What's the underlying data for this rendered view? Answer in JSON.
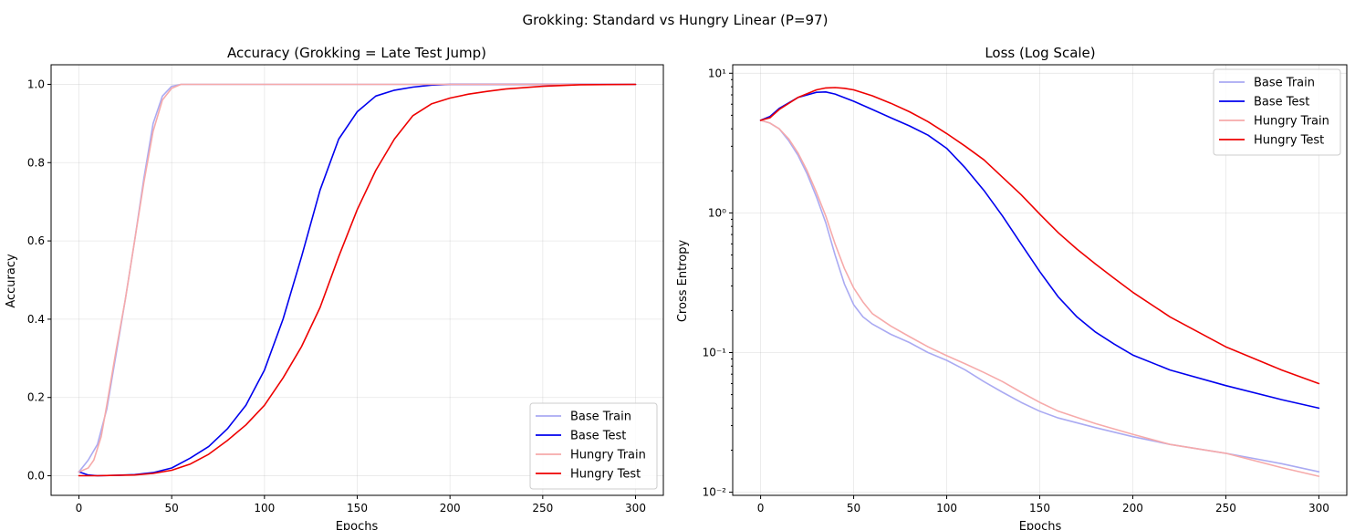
{
  "figure": {
    "suptitle": "Grokking: Standard vs Hungry Linear (P=97)"
  },
  "chart_data": [
    {
      "type": "line",
      "title": "Accuracy (Grokking = Late Test Jump)",
      "xlabel": "Epochs",
      "ylabel": "Accuracy",
      "xlim": [
        -15,
        315
      ],
      "ylim": [
        -0.05,
        1.05
      ],
      "xticks": [
        0,
        50,
        100,
        150,
        200,
        250,
        300
      ],
      "yticks": [
        0.0,
        0.2,
        0.4,
        0.6,
        0.8,
        1.0
      ],
      "ytick_labels": [
        "0.0",
        "0.2",
        "0.4",
        "0.6",
        "0.8",
        "1.0"
      ],
      "grid": true,
      "legend_position": "lower-right",
      "series": [
        {
          "name": "Base Train",
          "color": "#aaaaf2",
          "x": [
            0,
            5,
            10,
            15,
            20,
            25,
            30,
            35,
            40,
            45,
            50,
            55,
            60,
            80,
            100,
            150,
            200,
            250,
            300
          ],
          "y": [
            0.01,
            0.04,
            0.08,
            0.17,
            0.31,
            0.45,
            0.6,
            0.76,
            0.9,
            0.97,
            0.995,
            1.0,
            1.0,
            1.0,
            1.0,
            1.0,
            1.0,
            1.0,
            1.0
          ]
        },
        {
          "name": "Base Test",
          "color": "#0000ee",
          "x": [
            0,
            5,
            10,
            20,
            30,
            40,
            50,
            60,
            70,
            80,
            90,
            100,
            110,
            120,
            130,
            140,
            150,
            160,
            170,
            180,
            190,
            200,
            250,
            300
          ],
          "y": [
            0.01,
            0.002,
            0.0,
            0.001,
            0.003,
            0.008,
            0.02,
            0.045,
            0.075,
            0.12,
            0.18,
            0.27,
            0.4,
            0.56,
            0.73,
            0.86,
            0.93,
            0.97,
            0.985,
            0.993,
            0.998,
            1.0,
            1.0,
            1.0
          ]
        },
        {
          "name": "Hungry Train",
          "color": "#f6aaaa",
          "x": [
            0,
            5,
            8,
            12,
            15,
            20,
            25,
            30,
            35,
            40,
            45,
            50,
            55,
            60,
            80,
            100,
            150,
            200,
            250,
            300
          ],
          "y": [
            0.01,
            0.02,
            0.04,
            0.1,
            0.18,
            0.32,
            0.45,
            0.6,
            0.75,
            0.88,
            0.96,
            0.99,
            1.0,
            1.0,
            1.0,
            1.0,
            1.0,
            1.0,
            1.0,
            1.0
          ]
        },
        {
          "name": "Hungry Test",
          "color": "#ee0000",
          "x": [
            0,
            5,
            10,
            20,
            30,
            40,
            50,
            60,
            70,
            80,
            90,
            100,
            110,
            120,
            130,
            140,
            150,
            160,
            170,
            180,
            190,
            200,
            210,
            220,
            230,
            250,
            270,
            300
          ],
          "y": [
            0.0,
            0.0,
            0.0,
            0.001,
            0.002,
            0.006,
            0.014,
            0.03,
            0.055,
            0.09,
            0.13,
            0.18,
            0.25,
            0.33,
            0.43,
            0.56,
            0.68,
            0.78,
            0.86,
            0.92,
            0.95,
            0.965,
            0.975,
            0.982,
            0.988,
            0.995,
            0.999,
            1.0
          ]
        }
      ]
    },
    {
      "type": "line",
      "title": "Loss (Log Scale)",
      "xlabel": "Epochs",
      "ylabel": "Cross Entropy",
      "yscale": "log",
      "xlim": [
        -15,
        315
      ],
      "ylim": [
        0.0095,
        11.5
      ],
      "xticks": [
        0,
        50,
        100,
        150,
        200,
        250,
        300
      ],
      "yticks": [
        0.01,
        0.1,
        1,
        10
      ],
      "ytick_labels": [
        "10⁻²",
        "10⁻¹",
        "10⁰",
        "10¹"
      ],
      "grid": true,
      "legend_position": "upper-right",
      "series": [
        {
          "name": "Base Train",
          "color": "#aaaaf2",
          "x": [
            0,
            5,
            10,
            15,
            20,
            25,
            30,
            35,
            40,
            45,
            50,
            55,
            60,
            70,
            80,
            90,
            100,
            110,
            120,
            130,
            140,
            150,
            160,
            180,
            200,
            220,
            250,
            280,
            300
          ],
          "y": [
            4.6,
            4.4,
            4.0,
            3.3,
            2.6,
            1.9,
            1.3,
            0.85,
            0.5,
            0.31,
            0.22,
            0.18,
            0.16,
            0.135,
            0.118,
            0.1,
            0.088,
            0.075,
            0.062,
            0.052,
            0.044,
            0.038,
            0.034,
            0.029,
            0.025,
            0.022,
            0.019,
            0.016,
            0.014
          ]
        },
        {
          "name": "Base Test",
          "color": "#0000ee",
          "x": [
            0,
            5,
            10,
            20,
            30,
            35,
            40,
            50,
            60,
            70,
            80,
            90,
            100,
            110,
            120,
            130,
            140,
            150,
            160,
            170,
            180,
            190,
            200,
            220,
            250,
            280,
            300
          ],
          "y": [
            4.6,
            4.9,
            5.6,
            6.7,
            7.3,
            7.35,
            7.1,
            6.3,
            5.5,
            4.8,
            4.2,
            3.6,
            2.9,
            2.1,
            1.45,
            0.95,
            0.6,
            0.38,
            0.25,
            0.18,
            0.14,
            0.115,
            0.096,
            0.075,
            0.058,
            0.046,
            0.04
          ]
        },
        {
          "name": "Hungry Train",
          "color": "#f6aaaa",
          "x": [
            0,
            5,
            10,
            15,
            20,
            25,
            30,
            35,
            40,
            45,
            50,
            55,
            60,
            70,
            80,
            90,
            100,
            110,
            120,
            130,
            140,
            150,
            160,
            180,
            200,
            220,
            250,
            280,
            300
          ],
          "y": [
            4.6,
            4.4,
            4.0,
            3.4,
            2.7,
            2.0,
            1.4,
            0.95,
            0.6,
            0.4,
            0.29,
            0.23,
            0.19,
            0.155,
            0.13,
            0.11,
            0.095,
            0.083,
            0.072,
            0.062,
            0.052,
            0.044,
            0.038,
            0.031,
            0.026,
            0.022,
            0.019,
            0.015,
            0.013
          ]
        },
        {
          "name": "Hungry Test",
          "color": "#ee0000",
          "x": [
            0,
            5,
            10,
            20,
            30,
            35,
            40,
            45,
            50,
            60,
            70,
            80,
            90,
            100,
            110,
            120,
            130,
            140,
            150,
            160,
            170,
            180,
            190,
            200,
            220,
            250,
            280,
            300
          ],
          "y": [
            4.6,
            4.8,
            5.5,
            6.7,
            7.6,
            7.85,
            7.9,
            7.8,
            7.6,
            6.9,
            6.1,
            5.3,
            4.5,
            3.7,
            3.0,
            2.4,
            1.8,
            1.35,
            0.98,
            0.72,
            0.55,
            0.43,
            0.34,
            0.27,
            0.18,
            0.11,
            0.075,
            0.06
          ]
        }
      ]
    }
  ]
}
